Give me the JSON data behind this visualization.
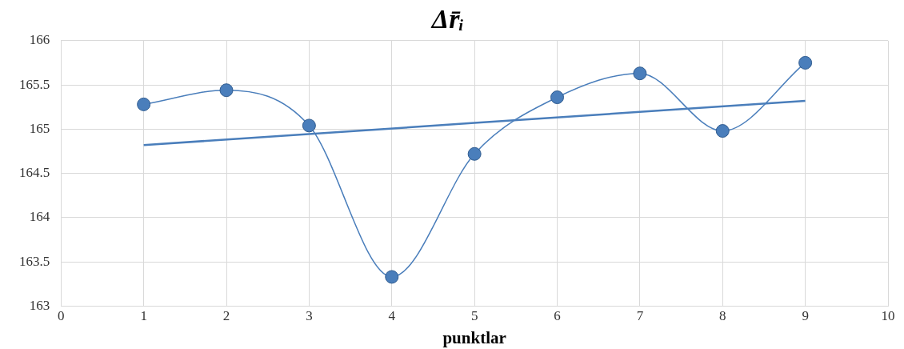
{
  "chart_data": {
    "type": "line",
    "title": "Δr̄ᵢ",
    "xlabel": "punktlar",
    "x": [
      1,
      2,
      3,
      4,
      5,
      6,
      7,
      8,
      9
    ],
    "series": [
      {
        "color": "#4a7ebb",
        "values": [
          165.28,
          165.44,
          165.04,
          163.33,
          164.72,
          165.36,
          165.63,
          164.98,
          165.75
        ]
      },
      {
        "type": "line",
        "color": "#4a7ebb",
        "x": [
          1,
          9
        ],
        "values": [
          164.82,
          165.32
        ],
        "marker": "none"
      }
    ],
    "xlim": [
      0,
      10
    ],
    "xticks": [
      0,
      1,
      2,
      3,
      4,
      5,
      6,
      7,
      8,
      9,
      10
    ],
    "ylim": [
      163,
      166
    ],
    "yticks": [
      163,
      163.5,
      164,
      164.5,
      165,
      165.5,
      166
    ],
    "grid": true,
    "marker": "circle",
    "line_style": "solid"
  }
}
